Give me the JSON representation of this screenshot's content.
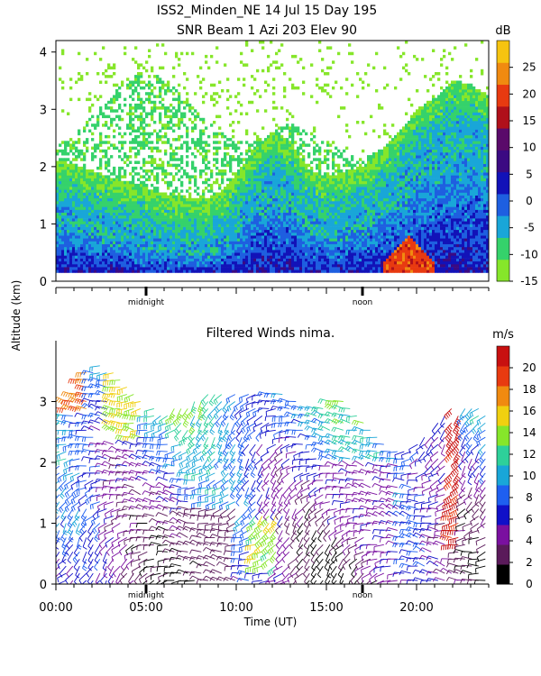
{
  "figure": {
    "title_line1": "ISS2_Minden_NE  14 Jul 15 Day 195",
    "title_line2": "SNR Beam 1 Azi 203 Elev 90",
    "shared_ylabel": "Altitude (km)",
    "shared_xlabel": "Time (UT)"
  },
  "chart_data": [
    {
      "type": "heatmap",
      "title": "SNR Beam 1 Azi 203 Elev 90",
      "ylim": [
        0,
        4.2
      ],
      "y_ticks": [
        0,
        1,
        2,
        3,
        4
      ],
      "xlim": [
        0,
        24
      ],
      "x_markers": [
        {
          "x": 5,
          "label": "midnight"
        },
        {
          "x": 17,
          "label": "noon"
        }
      ],
      "colorbar": {
        "unit": "dB",
        "min": -15,
        "max": 30,
        "ticks": [
          -15,
          -10,
          -5,
          0,
          5,
          10,
          15,
          20,
          25
        ],
        "colors": [
          "#86e62a",
          "#35d26b",
          "#19a6d8",
          "#1e5fe0",
          "#1212b8",
          "#3b0a82",
          "#5a0a6a",
          "#b0101a",
          "#e83a10",
          "#f08a10",
          "#f6c410"
        ]
      },
      "noise_floor_db": -15,
      "features": {
        "boundary_layer_top_km": [
          [
            0,
            1.2
          ],
          [
            2,
            1.0
          ],
          [
            4,
            0.8
          ],
          [
            6,
            0.6
          ],
          [
            8,
            0.5
          ],
          [
            9,
            0.6
          ],
          [
            10,
            1.0
          ],
          [
            11,
            1.4
          ],
          [
            12,
            1.7
          ],
          [
            13,
            1.5
          ],
          [
            14,
            1.0
          ],
          [
            15,
            0.9
          ],
          [
            16,
            1.0
          ],
          [
            17,
            1.1
          ],
          [
            18,
            1.4
          ],
          [
            19,
            1.7
          ],
          [
            20,
            2.1
          ],
          [
            21,
            2.3
          ],
          [
            22,
            2.6
          ],
          [
            23,
            2.5
          ],
          [
            24,
            2.3
          ]
        ],
        "strong_echo_center_x": [
          18,
          21
        ],
        "strong_echo_top_km": 0.8
      }
    },
    {
      "type": "barbs",
      "title": "Filtered Winds nima.",
      "ylim": [
        0,
        4.0
      ],
      "y_ticks": [
        0,
        1,
        2,
        3
      ],
      "xlim": [
        0,
        24
      ],
      "x_ticks": [
        0,
        5,
        10,
        15,
        20
      ],
      "x_tick_labels": [
        "00:00",
        "05:00",
        "10:00",
        "15:00",
        "20:00"
      ],
      "x_markers": [
        {
          "x": 5,
          "label": "midnight"
        },
        {
          "x": 17,
          "label": "noon"
        }
      ],
      "colorbar": {
        "unit": "m/s",
        "min": 0,
        "max": 22,
        "ticks": [
          0,
          2,
          4,
          6,
          8,
          10,
          12,
          14,
          16,
          18,
          20
        ],
        "colors": [
          "#000000",
          "#5a1a5a",
          "#7a10a0",
          "#1010c8",
          "#1e5ff0",
          "#19a6d8",
          "#2ed09a",
          "#86e62a",
          "#f0d010",
          "#f08a10",
          "#e83a10",
          "#c81010"
        ]
      },
      "speed_regions": [
        {
          "x": [
            0,
            2
          ],
          "y": [
            2.8,
            3.5
          ],
          "speed": 18
        },
        {
          "x": [
            3,
            5
          ],
          "y": [
            2.4,
            3.6
          ],
          "speed": 15
        },
        {
          "x": [
            5,
            7
          ],
          "y": [
            3.0,
            3.7
          ],
          "speed": 19
        },
        {
          "x": [
            11,
            12.5
          ],
          "y": [
            0.2,
            1.2
          ],
          "speed": 14
        },
        {
          "x": [
            21.8,
            22.5
          ],
          "y": [
            0.6,
            3.0
          ],
          "speed": 21
        }
      ]
    }
  ]
}
